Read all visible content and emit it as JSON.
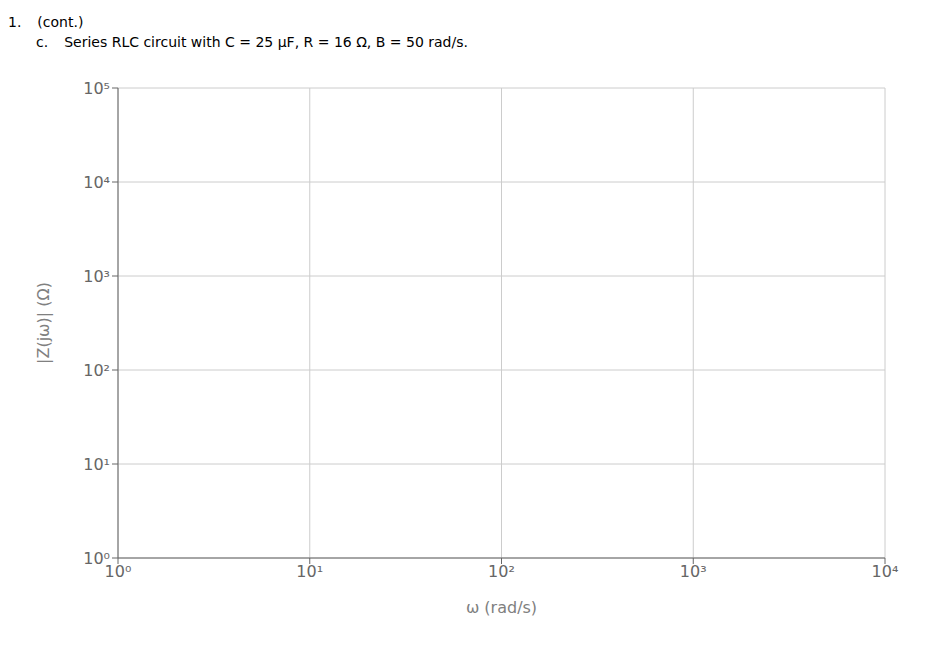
{
  "chart_data": {
    "type": "line",
    "annotations": [
      "1.",
      "(cont.)",
      "c.",
      "Series RLC circuit with C = 25 μF, R = 16 Ω, B = 50 rad/s."
    ],
    "xlabel": "ω (rad/s)",
    "ylabel": "|Z(jω)| (Ω)",
    "series": [],
    "log": true,
    "grid": true,
    "xlim": [
      1,
      10000
    ],
    "ylim": [
      1,
      100000
    ],
    "xticks": [
      {
        "value": 1,
        "label": "10⁰"
      },
      {
        "value": 10,
        "label": "10¹"
      },
      {
        "value": 100,
        "label": "10²"
      },
      {
        "value": 1000,
        "label": "10³"
      },
      {
        "value": 10000,
        "label": "10⁴"
      }
    ],
    "yticks": [
      {
        "value": 1,
        "label": "10⁰"
      },
      {
        "value": 10,
        "label": "10¹"
      },
      {
        "value": 100,
        "label": "10²"
      },
      {
        "value": 1000,
        "label": "10³"
      },
      {
        "value": 10000,
        "label": "10⁴"
      },
      {
        "value": 100000,
        "label": "10⁵"
      }
    ]
  }
}
